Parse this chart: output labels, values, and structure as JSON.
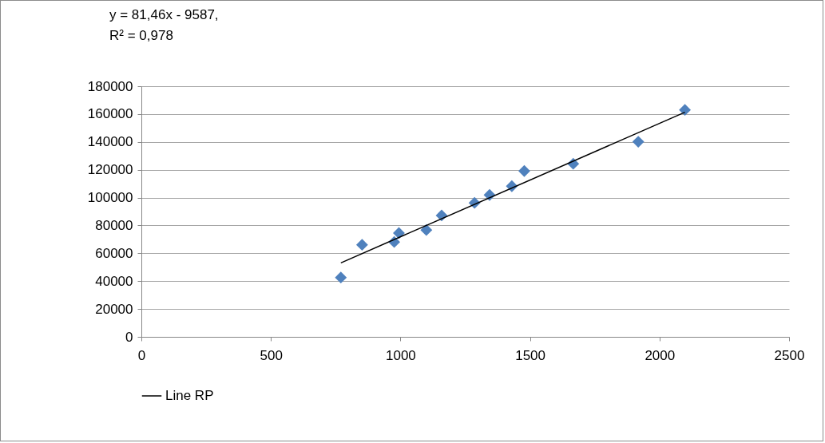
{
  "chart_data": {
    "type": "scatter",
    "annotations": [
      "y = 81,46x - 9587,",
      "R² = 0,978"
    ],
    "series": [
      {
        "color": "#4f81bd",
        "marker": "diamond",
        "x": [
          770,
          852,
          976,
          994,
          1100,
          1159,
          1286,
          1344,
          1430,
          1478,
          1667,
          1918,
          2098
        ],
        "values": [
          42600,
          66100,
          68100,
          74500,
          76700,
          87200,
          96200,
          101900,
          108200,
          119100,
          124300,
          140100,
          163000
        ]
      },
      {
        "type": "line",
        "name": "Line RP",
        "color": "#000000",
        "marker": "none",
        "line_style": "solid",
        "x": [
          770,
          2098
        ],
        "values": [
          53100,
          161300
        ]
      }
    ],
    "xlim": [
      0,
      2500
    ],
    "ylim": [
      0,
      180000
    ],
    "xticks": [
      0,
      500,
      1000,
      1500,
      2000,
      2500
    ],
    "yticks": [
      0,
      20000,
      40000,
      60000,
      80000,
      100000,
      120000,
      140000,
      160000,
      180000
    ],
    "grid": "y",
    "legend": "bottom"
  }
}
